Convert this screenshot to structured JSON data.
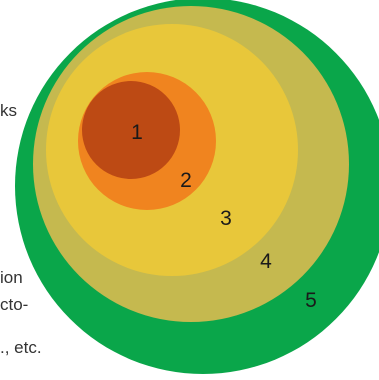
{
  "colors": {
    "ring5": "#0aa64a",
    "ring4": "#c5b94f",
    "ring3": "#e8c73a",
    "ring2": "#f0841f",
    "ring1": "#bd4a14",
    "text": "#333333"
  },
  "text_fragments": {
    "frag_ks": "ks",
    "frag_ion": "ion",
    "frag_cto": "cto-",
    "frag_etc": "., etc."
  },
  "rings": [
    {
      "label": "5",
      "color_key": "ring5"
    },
    {
      "label": "4",
      "color_key": "ring4"
    },
    {
      "label": "3",
      "color_key": "ring3"
    },
    {
      "label": "2",
      "color_key": "ring2"
    },
    {
      "label": "1",
      "color_key": "ring1"
    }
  ]
}
